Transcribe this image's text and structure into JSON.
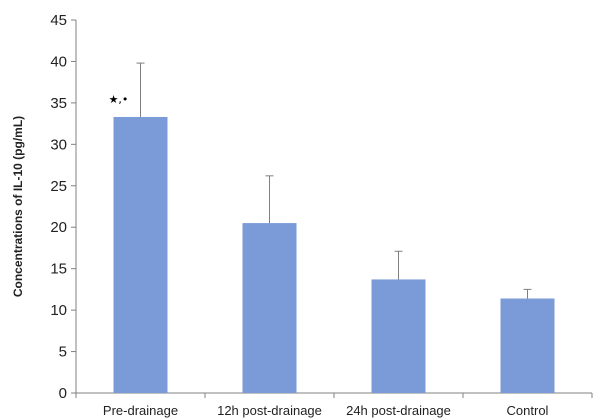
{
  "chart_data": {
    "type": "bar",
    "title": "",
    "xlabel": "",
    "ylabel": "Concentrations of IL-10 (pg/mL)",
    "categories": [
      "Pre-drainage",
      "12h post-drainage",
      "24h post-drainage",
      "Control"
    ],
    "values": [
      33.3,
      20.5,
      13.7,
      11.4
    ],
    "errors": [
      6.5,
      5.7,
      3.4,
      1.1
    ],
    "ylim": [
      0,
      45
    ],
    "yticks": [
      0,
      5,
      10,
      15,
      20,
      25,
      30,
      35,
      40,
      45
    ],
    "ytick_labels": [
      "0",
      "5",
      "10",
      "15",
      "20",
      "25",
      "30",
      "35",
      "40",
      "45"
    ],
    "grid": false,
    "legend": "none",
    "annotations": [
      {
        "category": "Pre-drainage",
        "text": "★,•"
      }
    ],
    "colors": {
      "bar": "#7a9bd8",
      "error_bar": "#808080",
      "axis": "#808080"
    }
  }
}
